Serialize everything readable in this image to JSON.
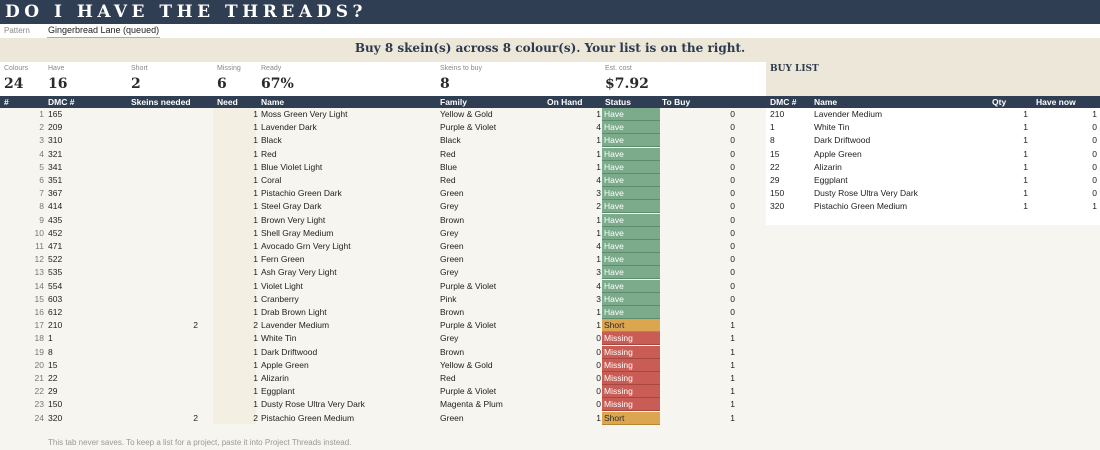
{
  "title": "DO I HAVE THE THREADS?",
  "pattern": {
    "label": "Pattern",
    "value": "Gingerbread Lane (queued)"
  },
  "banner": "Buy 8 skein(s) across 8 colour(s). Your list is on the right.",
  "stats": [
    {
      "label": "Colours",
      "value": "24"
    },
    {
      "label": "Have",
      "value": "16"
    },
    {
      "label": "Short",
      "value": "2"
    },
    {
      "label": "Missing",
      "value": "6"
    },
    {
      "label": "Ready",
      "value": "67%"
    },
    {
      "label": "Skeins to buy",
      "value": "8"
    },
    {
      "label": "Est. cost",
      "value": "$7.92"
    }
  ],
  "buy_list_title": "BUY LIST",
  "main_headers": {
    "idx": "#",
    "dmc": "DMC #",
    "skeins": "Skeins needed",
    "need": "Need",
    "name": "Name",
    "family": "Family",
    "onhand": "On Hand",
    "status": "Status",
    "tobuy": "To Buy"
  },
  "buy_headers": {
    "dmc": "DMC #",
    "name": "Name",
    "qty": "Qty",
    "havenow": "Have now"
  },
  "rows": [
    {
      "idx": "1",
      "dmc": "165",
      "skeins": "",
      "need": "1",
      "name": "Moss Green Very Light",
      "family": "Yellow & Gold",
      "onhand": "1",
      "status": "Have",
      "tobuy": "0"
    },
    {
      "idx": "2",
      "dmc": "209",
      "skeins": "",
      "need": "1",
      "name": "Lavender Dark",
      "family": "Purple & Violet",
      "onhand": "4",
      "status": "Have",
      "tobuy": "0"
    },
    {
      "idx": "3",
      "dmc": "310",
      "skeins": "",
      "need": "1",
      "name": "Black",
      "family": "Black",
      "onhand": "1",
      "status": "Have",
      "tobuy": "0"
    },
    {
      "idx": "4",
      "dmc": "321",
      "skeins": "",
      "need": "1",
      "name": "Red",
      "family": "Red",
      "onhand": "1",
      "status": "Have",
      "tobuy": "0"
    },
    {
      "idx": "5",
      "dmc": "341",
      "skeins": "",
      "need": "1",
      "name": "Blue Violet Light",
      "family": "Blue",
      "onhand": "1",
      "status": "Have",
      "tobuy": "0"
    },
    {
      "idx": "6",
      "dmc": "351",
      "skeins": "",
      "need": "1",
      "name": "Coral",
      "family": "Red",
      "onhand": "4",
      "status": "Have",
      "tobuy": "0"
    },
    {
      "idx": "7",
      "dmc": "367",
      "skeins": "",
      "need": "1",
      "name": "Pistachio Green Dark",
      "family": "Green",
      "onhand": "3",
      "status": "Have",
      "tobuy": "0"
    },
    {
      "idx": "8",
      "dmc": "414",
      "skeins": "",
      "need": "1",
      "name": "Steel Gray Dark",
      "family": "Grey",
      "onhand": "2",
      "status": "Have",
      "tobuy": "0"
    },
    {
      "idx": "9",
      "dmc": "435",
      "skeins": "",
      "need": "1",
      "name": "Brown Very Light",
      "family": "Brown",
      "onhand": "1",
      "status": "Have",
      "tobuy": "0"
    },
    {
      "idx": "10",
      "dmc": "452",
      "skeins": "",
      "need": "1",
      "name": "Shell Gray Medium",
      "family": "Grey",
      "onhand": "1",
      "status": "Have",
      "tobuy": "0"
    },
    {
      "idx": "11",
      "dmc": "471",
      "skeins": "",
      "need": "1",
      "name": "Avocado Grn Very Light",
      "family": "Green",
      "onhand": "4",
      "status": "Have",
      "tobuy": "0"
    },
    {
      "idx": "12",
      "dmc": "522",
      "skeins": "",
      "need": "1",
      "name": "Fern Green",
      "family": "Green",
      "onhand": "1",
      "status": "Have",
      "tobuy": "0"
    },
    {
      "idx": "13",
      "dmc": "535",
      "skeins": "",
      "need": "1",
      "name": "Ash Gray Very Light",
      "family": "Grey",
      "onhand": "3",
      "status": "Have",
      "tobuy": "0"
    },
    {
      "idx": "14",
      "dmc": "554",
      "skeins": "",
      "need": "1",
      "name": "Violet Light",
      "family": "Purple & Violet",
      "onhand": "4",
      "status": "Have",
      "tobuy": "0"
    },
    {
      "idx": "15",
      "dmc": "603",
      "skeins": "",
      "need": "1",
      "name": "Cranberry",
      "family": "Pink",
      "onhand": "3",
      "status": "Have",
      "tobuy": "0"
    },
    {
      "idx": "16",
      "dmc": "612",
      "skeins": "",
      "need": "1",
      "name": "Drab Brown Light",
      "family": "Brown",
      "onhand": "1",
      "status": "Have",
      "tobuy": "0"
    },
    {
      "idx": "17",
      "dmc": "210",
      "skeins": "2",
      "need": "2",
      "name": "Lavender Medium",
      "family": "Purple & Violet",
      "onhand": "1",
      "status": "Short",
      "tobuy": "1"
    },
    {
      "idx": "18",
      "dmc": "1",
      "skeins": "",
      "need": "1",
      "name": "White Tin",
      "family": "Grey",
      "onhand": "0",
      "status": "Missing",
      "tobuy": "1"
    },
    {
      "idx": "19",
      "dmc": "8",
      "skeins": "",
      "need": "1",
      "name": "Dark Driftwood",
      "family": "Brown",
      "onhand": "0",
      "status": "Missing",
      "tobuy": "1"
    },
    {
      "idx": "20",
      "dmc": "15",
      "skeins": "",
      "need": "1",
      "name": "Apple Green",
      "family": "Yellow & Gold",
      "onhand": "0",
      "status": "Missing",
      "tobuy": "1"
    },
    {
      "idx": "21",
      "dmc": "22",
      "skeins": "",
      "need": "1",
      "name": "Alizarin",
      "family": "Red",
      "onhand": "0",
      "status": "Missing",
      "tobuy": "1"
    },
    {
      "idx": "22",
      "dmc": "29",
      "skeins": "",
      "need": "1",
      "name": "Eggplant",
      "family": "Purple & Violet",
      "onhand": "0",
      "status": "Missing",
      "tobuy": "1"
    },
    {
      "idx": "23",
      "dmc": "150",
      "skeins": "",
      "need": "1",
      "name": "Dusty Rose Ultra Very Dark",
      "family": "Magenta & Plum",
      "onhand": "0",
      "status": "Missing",
      "tobuy": "1"
    },
    {
      "idx": "24",
      "dmc": "320",
      "skeins": "2",
      "need": "2",
      "name": "Pistachio Green Medium",
      "family": "Green",
      "onhand": "1",
      "status": "Short",
      "tobuy": "1"
    }
  ],
  "buy_rows": [
    {
      "dmc": "210",
      "name": "Lavender Medium",
      "qty": "1",
      "havenow": "1"
    },
    {
      "dmc": "1",
      "name": "White Tin",
      "qty": "1",
      "havenow": "0"
    },
    {
      "dmc": "8",
      "name": "Dark Driftwood",
      "qty": "1",
      "havenow": "0"
    },
    {
      "dmc": "15",
      "name": "Apple Green",
      "qty": "1",
      "havenow": "0"
    },
    {
      "dmc": "22",
      "name": "Alizarin",
      "qty": "1",
      "havenow": "0"
    },
    {
      "dmc": "29",
      "name": "Eggplant",
      "qty": "1",
      "havenow": "0"
    },
    {
      "dmc": "150",
      "name": "Dusty Rose Ultra Very Dark",
      "qty": "1",
      "havenow": "0"
    },
    {
      "dmc": "320",
      "name": "Pistachio Green Medium",
      "qty": "1",
      "havenow": "1"
    }
  ],
  "footer_note": "This tab never saves. To keep a list for a project, paste it into Project Threads instead.",
  "colors": {
    "header": "#2f3e52",
    "have": "#7bab8a",
    "short": "#dba64f",
    "missing": "#c95c54",
    "tan": "#ece7d8"
  }
}
